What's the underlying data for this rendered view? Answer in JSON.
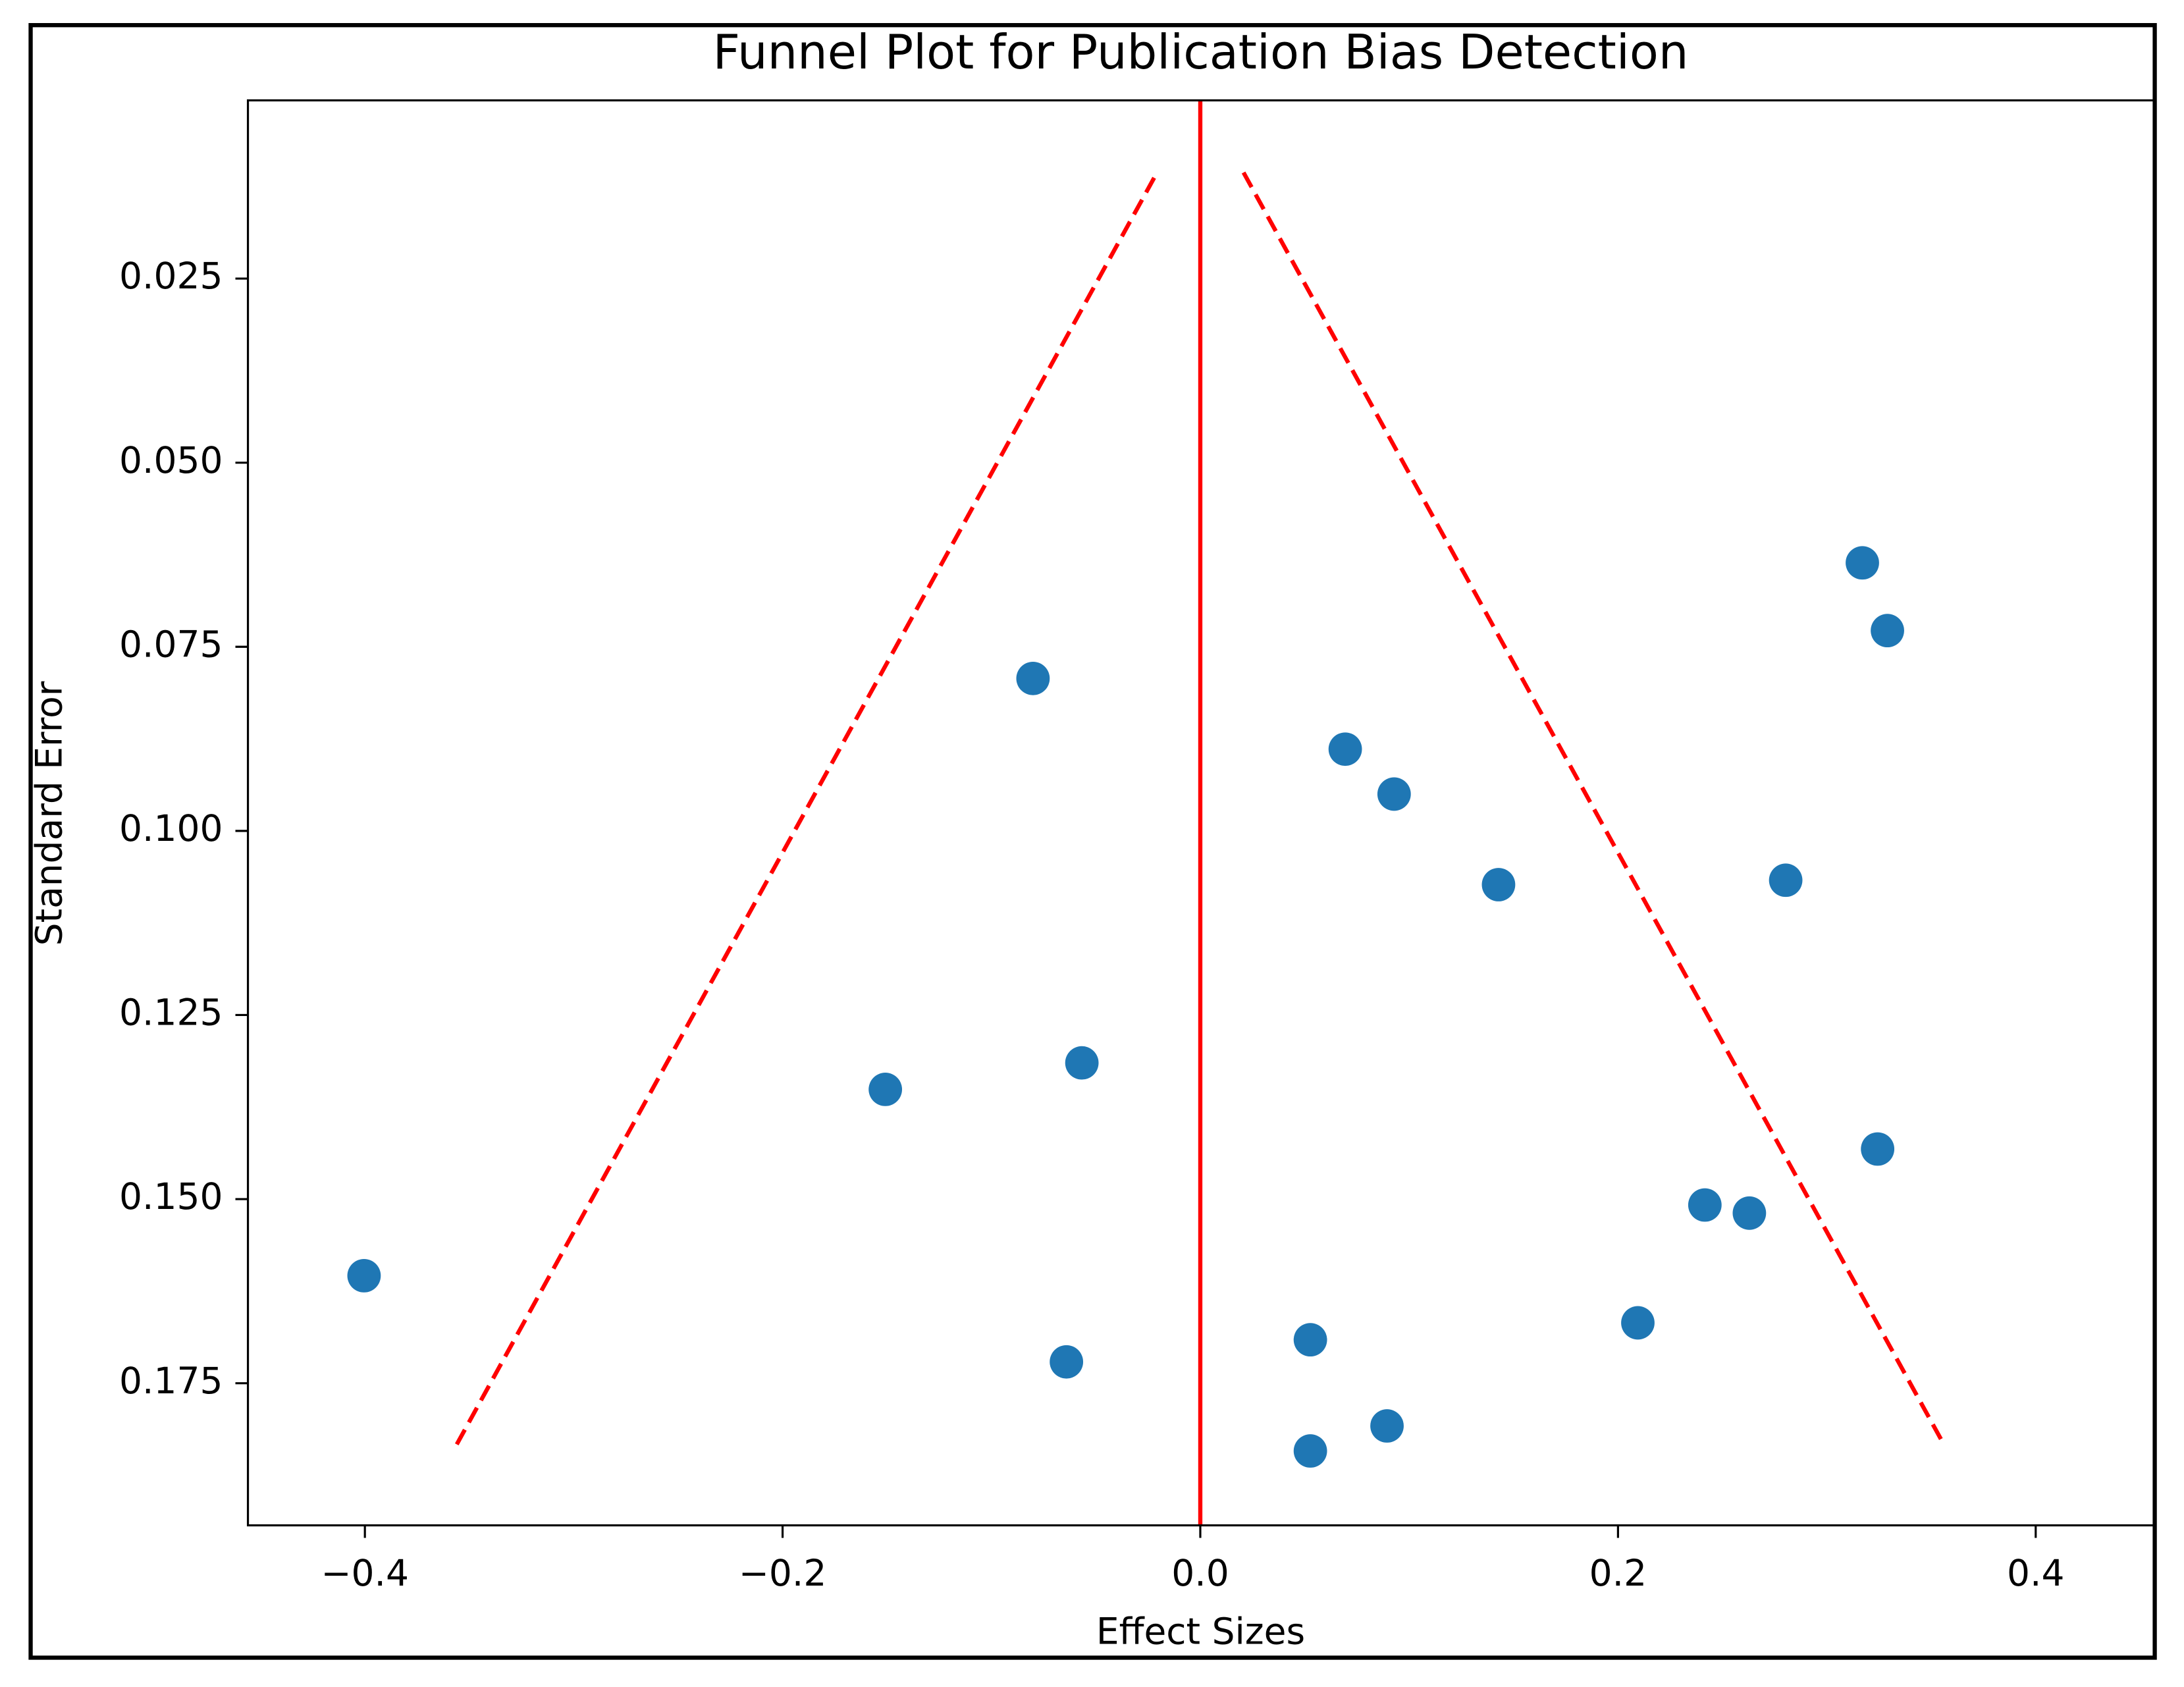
{
  "chart_data": {
    "type": "scatter",
    "title": "Funnel Plot for Publication Bias Detection",
    "x_label": "Effect Sizes",
    "y_label": "Standard Error",
    "color": "#1f77b4",
    "x": [
      -0.4004,
      -0.1508,
      -0.0801,
      -0.0567,
      -0.0641,
      0.0527,
      0.0527,
      0.0694,
      0.0928,
      0.0894,
      0.1428,
      0.2095,
      0.2416,
      0.2629,
      0.2803,
      0.317,
      0.329,
      0.3243
    ],
    "values": [
      0.1604,
      0.1351,
      0.0793,
      0.1315,
      0.1721,
      0.1691,
      0.1842,
      0.0889,
      0.095,
      0.1808,
      0.1073,
      0.1668,
      0.1508,
      0.1519,
      0.1067,
      0.0636,
      0.0728,
      0.1432
    ],
    "reference_lines": [
      {
        "color": "#ff0000",
        "dashed": false,
        "x": [
          0,
          0
        ],
        "y": [
          0.0008,
          0.1943
        ]
      },
      {
        "color": "#ff0000",
        "dashed": true,
        "x": [
          -0.356,
          -0.0207
        ],
        "y": [
          0.1833,
          0.0106
        ]
      },
      {
        "color": "#ff0000",
        "dashed": true,
        "x": [
          0.0207,
          0.356
        ],
        "y": [
          0.0106,
          0.1833
        ]
      }
    ],
    "xlim": [
      -0.456,
      0.457
    ],
    "ylim": [
      0.0008,
      0.1943
    ],
    "y_inverted": true,
    "xticks": [
      {
        "value": -0.4,
        "label": "−0.4"
      },
      {
        "value": -0.2,
        "label": "−0.2"
      },
      {
        "value": 0,
        "label": "0.0"
      },
      0.2,
      0.4
    ],
    "yticks": [
      0.025,
      {
        "value": 0.05,
        "label": "0.050"
      },
      0.075,
      {
        "value": 0.1,
        "label": "0.100"
      },
      0.125,
      {
        "value": 0.15,
        "label": "0.150"
      },
      0.175
    ],
    "grid": false
  }
}
